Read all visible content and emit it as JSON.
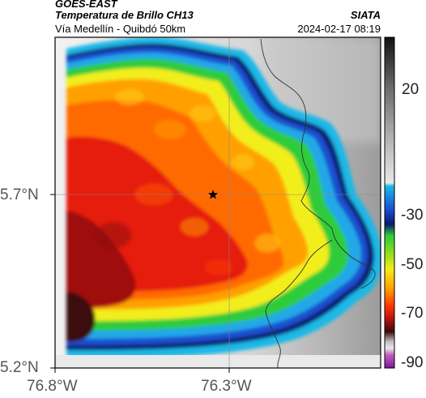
{
  "header": {
    "satellite": "GOES-EAST",
    "product": "Temperatura de Brillo CH13",
    "route": "Vía Medellín - Quibdó 50km",
    "org": "SIATA",
    "timestamp": "2024-02-17 08:19"
  },
  "axes": {
    "y_ticks": [
      "5.7°N",
      "5.2°N"
    ],
    "x_ticks": [
      "76.8°W",
      "76.3°W"
    ]
  },
  "colorbar": {
    "ticks": [
      "20",
      "-30",
      "-50",
      "-70",
      "-90"
    ],
    "tick_values": [
      20,
      -30,
      -50,
      -70,
      -90
    ]
  },
  "map": {
    "marker": "star-icon",
    "colors": {
      "darkest": "#3a0c0c",
      "red": "#e61a0f",
      "orange": "#ff8c00",
      "yellow": "#ffea00",
      "green": "#33cc22",
      "cyan": "#1ab8e6",
      "navy": "#0a1a6e",
      "cloud_gray": "#d9d9d9"
    }
  }
}
